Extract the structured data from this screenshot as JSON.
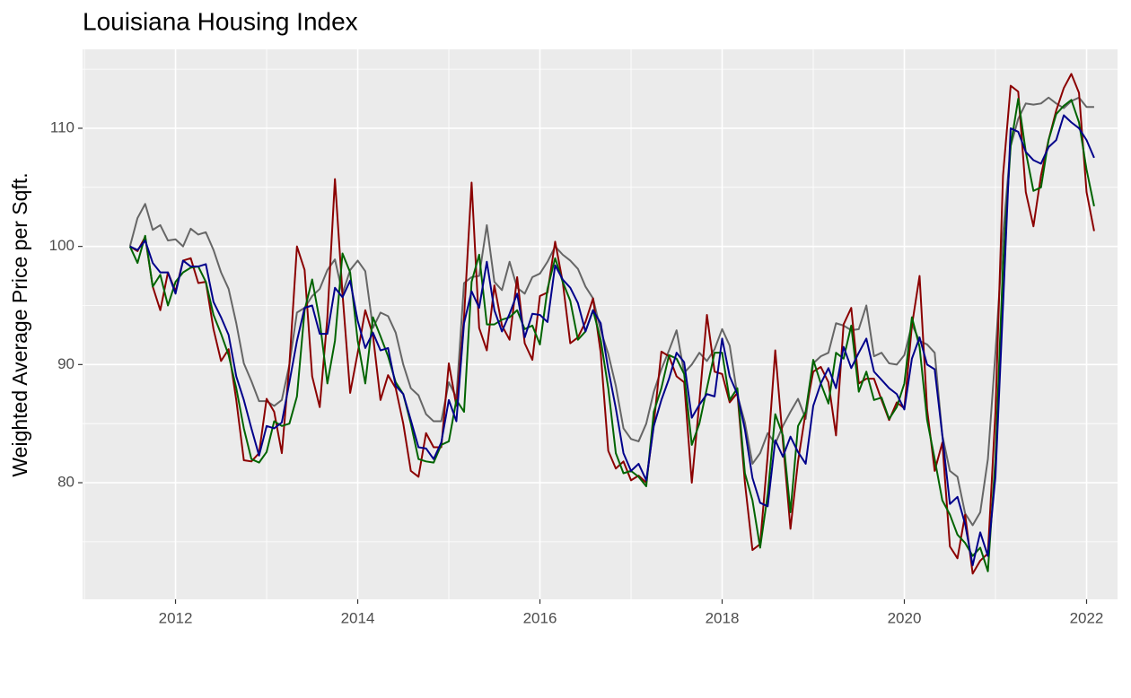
{
  "chart_data": {
    "type": "line",
    "title": "Louisiana Housing Index",
    "y_label": "Weighted Average Price per Sqft.",
    "x": [
      2011.5,
      2011.583,
      2011.667,
      2011.75,
      2011.833,
      2011.917,
      2012,
      2012.083,
      2012.167,
      2012.25,
      2012.333,
      2012.417,
      2012.5,
      2012.583,
      2012.667,
      2012.75,
      2012.833,
      2012.917,
      2013,
      2013.083,
      2013.167,
      2013.25,
      2013.333,
      2013.417,
      2013.5,
      2013.583,
      2013.667,
      2013.75,
      2013.833,
      2013.917,
      2014,
      2014.083,
      2014.167,
      2014.25,
      2014.333,
      2014.417,
      2014.5,
      2014.583,
      2014.667,
      2014.75,
      2014.833,
      2014.917,
      2015,
      2015.083,
      2015.167,
      2015.25,
      2015.333,
      2015.417,
      2015.5,
      2015.583,
      2015.667,
      2015.75,
      2015.833,
      2015.917,
      2016,
      2016.083,
      2016.167,
      2016.25,
      2016.333,
      2016.417,
      2016.5,
      2016.583,
      2016.667,
      2016.75,
      2016.833,
      2016.917,
      2017,
      2017.083,
      2017.167,
      2017.25,
      2017.333,
      2017.417,
      2017.5,
      2017.583,
      2017.667,
      2017.75,
      2017.833,
      2017.917,
      2018,
      2018.083,
      2018.167,
      2018.25,
      2018.333,
      2018.417,
      2018.5,
      2018.583,
      2018.667,
      2018.75,
      2018.833,
      2018.917,
      2019,
      2019.083,
      2019.167,
      2019.25,
      2019.333,
      2019.417,
      2019.5,
      2019.583,
      2019.667,
      2019.75,
      2019.833,
      2019.917,
      2020,
      2020.083,
      2020.167,
      2020.25,
      2020.333,
      2020.417,
      2020.5,
      2020.583,
      2020.667,
      2020.75,
      2020.833,
      2020.917,
      2021,
      2021.083,
      2021.167,
      2021.25,
      2021.333,
      2021.417,
      2021.5,
      2021.583,
      2021.667,
      2021.75,
      2021.833,
      2021.917,
      2022,
      2022.083
    ],
    "series": [
      {
        "color": "#666666",
        "values": [
          100,
          102.4,
          103.6,
          101.4,
          101.8,
          100.5,
          100.6,
          100,
          101.5,
          101,
          101.2,
          99.7,
          97.8,
          96.4,
          93.5,
          90.1,
          88.6,
          86.9,
          86.9,
          86.5,
          87,
          90,
          94.4,
          94.8,
          95.8,
          96.4,
          98,
          98.9,
          96,
          98,
          98.8,
          97.9,
          93.1,
          94.4,
          94.1,
          92.7,
          90,
          88,
          87.4,
          85.8,
          85.2,
          85.2,
          88.5,
          87.2,
          96.9,
          97.4,
          97.5,
          101.8,
          97,
          96.3,
          98.7,
          96.5,
          96,
          97.4,
          97.7,
          98.7,
          100,
          99.3,
          98.8,
          98.1,
          96.6,
          95.6,
          92.9,
          90.9,
          88.2,
          84.6,
          83.7,
          83.5,
          85,
          87.7,
          89.6,
          91.2,
          92.9,
          89.3,
          90,
          91,
          90.3,
          91.3,
          93,
          91.6,
          87.4,
          85.1,
          81.6,
          82.5,
          84.2,
          83.3,
          84.8,
          86,
          87.1,
          85.4,
          90.1,
          90.7,
          91,
          93.5,
          93.3,
          92.9,
          93,
          95,
          90.7,
          91,
          90.1,
          90,
          90.8,
          93.4,
          92,
          91.7,
          91,
          84,
          81,
          80.5,
          77.4,
          76.4,
          77.5,
          82,
          91,
          101,
          108.5,
          110.8,
          112.1,
          112,
          112.1,
          112.6,
          112.1,
          111.7,
          112.3,
          112.6,
          111.8,
          111.8
        ]
      },
      {
        "color": "#8b0000",
        "values": [
          100,
          99.6,
          100.8,
          96.6,
          94.6,
          97.8,
          96.2,
          98.8,
          99,
          96.9,
          97,
          93,
          90.3,
          91.3,
          87,
          81.9,
          81.8,
          82.5,
          87.1,
          86,
          82.5,
          90,
          100,
          98,
          89,
          86.4,
          94,
          105.7,
          96,
          87.6,
          91,
          94.6,
          92.5,
          87,
          89.1,
          88,
          85,
          81,
          80.5,
          84.2,
          83,
          83,
          90.1,
          86.5,
          94,
          105.4,
          93.1,
          91.2,
          96.7,
          93.3,
          92.1,
          97.4,
          91.8,
          90.4,
          95.8,
          96.1,
          100.4,
          97,
          91.8,
          92.3,
          93.6,
          95.6,
          91,
          82.7,
          81.2,
          81.8,
          80.2,
          80.6,
          80,
          85,
          91.1,
          90.7,
          89,
          88.5,
          80,
          86.8,
          94.2,
          89.4,
          89.2,
          86.8,
          87.6,
          80,
          74.3,
          74.8,
          82.3,
          91.2,
          83.5,
          76.1,
          81.8,
          86,
          89.4,
          89.8,
          88.5,
          84,
          93.4,
          94.8,
          88.4,
          88.8,
          88.8,
          87,
          85.3,
          86.8,
          86.3,
          93.3,
          97.5,
          86.2,
          81,
          83.4,
          74.6,
          73.6,
          77.3,
          72.3,
          73.4,
          74,
          86,
          106,
          113.6,
          113.1,
          104.6,
          101.7,
          106,
          109,
          111.5,
          113.4,
          114.6,
          113,
          104.6,
          101.3
        ]
      },
      {
        "color": "#006400",
        "values": [
          100,
          98.6,
          100.9,
          96.6,
          97.6,
          95,
          97,
          97.8,
          98.2,
          98.3,
          97,
          94.2,
          92.6,
          90.8,
          88,
          84.6,
          82,
          81.7,
          82.6,
          85.2,
          84.8,
          85,
          87.3,
          94.6,
          97.2,
          93.7,
          88.4,
          92,
          99.4,
          97.8,
          92,
          88.4,
          94,
          92.4,
          90.7,
          88.5,
          87.5,
          85,
          82,
          81.8,
          81.7,
          83.2,
          83.5,
          87,
          86,
          97,
          99.3,
          93.4,
          93.4,
          93.8,
          94,
          94.6,
          93,
          93.3,
          91.7,
          96.4,
          99,
          97,
          95.4,
          92.1,
          92.8,
          94.6,
          92.1,
          88,
          82.5,
          80.8,
          81,
          80.5,
          79.7,
          86,
          88,
          90.8,
          90.5,
          89.2,
          83.2,
          85,
          88,
          91,
          91,
          87,
          88,
          80.8,
          78.5,
          74.5,
          79,
          85.8,
          84,
          77.5,
          84.8,
          86,
          90.4,
          88.4,
          86.7,
          91,
          90.5,
          93.3,
          87.7,
          89.4,
          87,
          87.2,
          85.4,
          86.4,
          88.4,
          94,
          91.5,
          85.3,
          82,
          78.5,
          77.3,
          75.6,
          74.9,
          73.8,
          74.5,
          72.5,
          82,
          98.5,
          108.5,
          112.5,
          108,
          104.7,
          105,
          109,
          111.2,
          111.9,
          112.4,
          110.5,
          106.5,
          103.4
        ]
      },
      {
        "color": "#00008b",
        "values": [
          100,
          99.7,
          100.5,
          98.6,
          97.8,
          97.8,
          96,
          98.8,
          98.3,
          98.3,
          98.5,
          95.3,
          94,
          92.5,
          89,
          87,
          84.6,
          82.3,
          84.8,
          84.6,
          85.1,
          88.5,
          92,
          94.8,
          95,
          92.6,
          92.6,
          96.5,
          95.7,
          97.1,
          93.7,
          91.4,
          92.7,
          91.2,
          91.4,
          88.2,
          87.5,
          85.3,
          83,
          82.9,
          82,
          83.4,
          87,
          85.2,
          93.5,
          96.2,
          94.8,
          98.7,
          94.6,
          92.8,
          94.3,
          96,
          92.3,
          94.3,
          94.2,
          93.6,
          98.4,
          97.2,
          96.5,
          95.2,
          92.8,
          94.6,
          93.5,
          89.6,
          86.3,
          82.5,
          81,
          81.6,
          80.2,
          84.8,
          87,
          88.8,
          91,
          90.2,
          85.5,
          86.6,
          87.5,
          87.3,
          92.2,
          89,
          87.5,
          84.5,
          80.4,
          78.3,
          78,
          83.6,
          82.2,
          83.9,
          82.6,
          81.6,
          86.5,
          88.4,
          89.7,
          88,
          91.5,
          89.7,
          91,
          92.2,
          89.4,
          88.7,
          88,
          87.5,
          86.2,
          90.5,
          92.3,
          90,
          89.6,
          84,
          78.2,
          78.8,
          76.5,
          73,
          75.8,
          73.8,
          80.5,
          95,
          110,
          109.7,
          108,
          107.3,
          107,
          108.4,
          109,
          111.1,
          110.5,
          110,
          109,
          107.5
        ]
      }
    ],
    "xlim": [
      2010.98,
      2022.34
    ],
    "xticks": [
      2012,
      2014,
      2016,
      2018,
      2020,
      2022
    ],
    "xminor": [
      2011,
      2013,
      2015,
      2017,
      2019,
      2021
    ],
    "ylim": [
      70.13,
      116.68
    ],
    "yticks": [
      80,
      90,
      100,
      110
    ],
    "yminor": [
      75,
      85,
      95,
      105,
      115
    ],
    "grid": true,
    "panel_color": "#ebebeb"
  }
}
